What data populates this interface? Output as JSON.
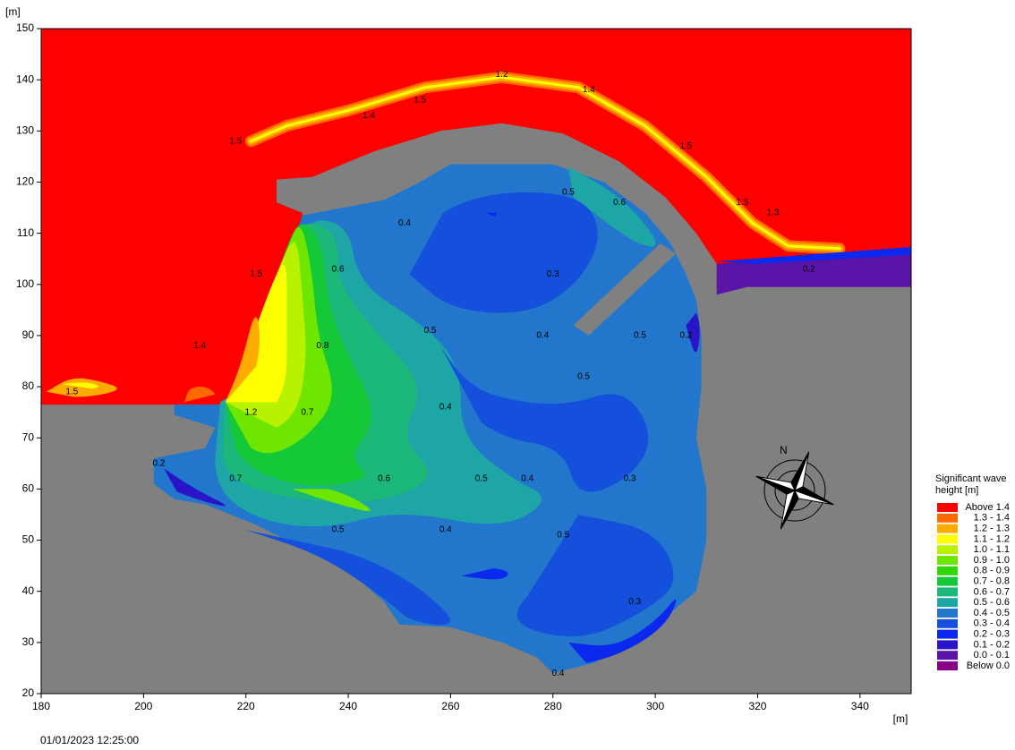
{
  "chart_data": {
    "type": "contour",
    "x_label": "[m]",
    "y_label": "[m]",
    "xlim": [
      180,
      350
    ],
    "ylim": [
      20,
      150
    ],
    "xticks": [
      180,
      200,
      220,
      240,
      260,
      280,
      300,
      320,
      340
    ],
    "yticks": [
      20,
      30,
      40,
      50,
      60,
      70,
      80,
      90,
      100,
      110,
      120,
      130,
      140,
      150
    ],
    "land_color": "#808080",
    "timestamp": "01/01/2023 12:25:00",
    "compass_label": "N",
    "legend": {
      "title": "Significant wave height [m]",
      "items": [
        {
          "label": "Above 1.4",
          "color": "#ff0000"
        },
        {
          "label": "1.3 - 1.4",
          "color": "#ff6a00"
        },
        {
          "label": "1.2 - 1.3",
          "color": "#ffaa00"
        },
        {
          "label": "1.1 - 1.2",
          "color": "#ffff00"
        },
        {
          "label": "1.0 - 1.1",
          "color": "#b8f200"
        },
        {
          "label": "0.9 - 1.0",
          "color": "#6ee600"
        },
        {
          "label": "0.8 - 0.9",
          "color": "#2ed800"
        },
        {
          "label": "0.7 - 0.8",
          "color": "#14c838"
        },
        {
          "label": "0.6 - 0.7",
          "color": "#1cb87a"
        },
        {
          "label": "0.5 - 0.6",
          "color": "#1ea6a6"
        },
        {
          "label": "0.4 - 0.5",
          "color": "#2277cc"
        },
        {
          "label": "0.3 - 0.4",
          "color": "#1450dc"
        },
        {
          "label": "0.2 - 0.3",
          "color": "#0a28ee"
        },
        {
          "label": "0.1 - 0.2",
          "color": "#2a14c8"
        },
        {
          "label": "0.0 - 0.1",
          "color": "#5a14a8"
        },
        {
          "label": "Below 0.0",
          "color": "#880088"
        }
      ]
    },
    "contour_labels": [
      {
        "text": "1.2",
        "x": 270,
        "y": 141
      },
      {
        "text": "1.4",
        "x": 244,
        "y": 133
      },
      {
        "text": "1.5",
        "x": 254,
        "y": 136
      },
      {
        "text": "1.4",
        "x": 287,
        "y": 138
      },
      {
        "text": "1.5",
        "x": 306,
        "y": 127
      },
      {
        "text": "1.5",
        "x": 317,
        "y": 116
      },
      {
        "text": "1.3",
        "x": 323,
        "y": 114
      },
      {
        "text": "1.5",
        "x": 218,
        "y": 128
      },
      {
        "text": "1.5",
        "x": 222,
        "y": 102
      },
      {
        "text": "1.4",
        "x": 211,
        "y": 88
      },
      {
        "text": "1.5",
        "x": 186,
        "y": 79
      },
      {
        "text": "1.2",
        "x": 221,
        "y": 75
      },
      {
        "text": "0.7",
        "x": 232,
        "y": 75
      },
      {
        "text": "0.8",
        "x": 235,
        "y": 88
      },
      {
        "text": "0.6",
        "x": 238,
        "y": 103
      },
      {
        "text": "0.4",
        "x": 251,
        "y": 112
      },
      {
        "text": "0.5",
        "x": 283,
        "y": 118
      },
      {
        "text": "0.6",
        "x": 293,
        "y": 116
      },
      {
        "text": "0.3",
        "x": 280,
        "y": 102
      },
      {
        "text": "0.5",
        "x": 256,
        "y": 91
      },
      {
        "text": "0.4",
        "x": 278,
        "y": 90
      },
      {
        "text": "0.5",
        "x": 297,
        "y": 90
      },
      {
        "text": "0.5",
        "x": 286,
        "y": 82
      },
      {
        "text": "0.4",
        "x": 259,
        "y": 76
      },
      {
        "text": "0.6",
        "x": 247,
        "y": 62
      },
      {
        "text": "0.5",
        "x": 266,
        "y": 62
      },
      {
        "text": "0.4",
        "x": 275,
        "y": 62
      },
      {
        "text": "0.3",
        "x": 295,
        "y": 62
      },
      {
        "text": "0.7",
        "x": 218,
        "y": 62
      },
      {
        "text": "0.5",
        "x": 238,
        "y": 52
      },
      {
        "text": "0.4",
        "x": 259,
        "y": 52
      },
      {
        "text": "0.5",
        "x": 282,
        "y": 51
      },
      {
        "text": "0.2",
        "x": 306,
        "y": 90
      },
      {
        "text": "0.2",
        "x": 330,
        "y": 103
      },
      {
        "text": "0.2",
        "x": 203,
        "y": 65
      },
      {
        "text": "0.3",
        "x": 296,
        "y": 38
      },
      {
        "text": "0.4",
        "x": 281,
        "y": 24
      }
    ]
  }
}
